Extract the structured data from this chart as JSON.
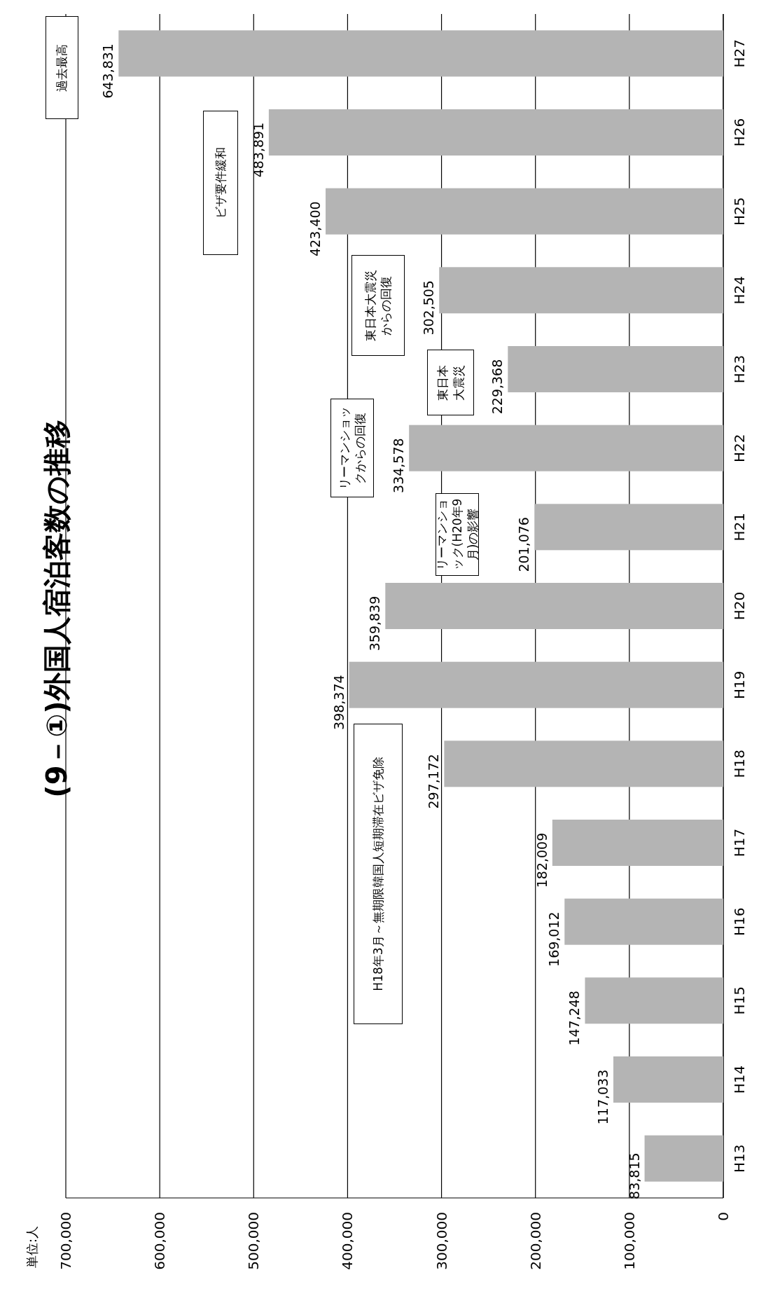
{
  "chart_data": {
    "type": "bar",
    "orientation": "horizontal",
    "title": "(9－①)外国人宿泊客数の推移",
    "categories": [
      "H27",
      "H26",
      "H25",
      "H24",
      "H23",
      "H22",
      "H21",
      "H20",
      "H19",
      "H18",
      "H17",
      "H16",
      "H15",
      "H14",
      "H13"
    ],
    "values": [
      643831,
      483891,
      423400,
      302505,
      229368,
      334578,
      201076,
      359839,
      398374,
      297172,
      182009,
      169012,
      147248,
      117033,
      83815
    ],
    "color": "#b4b4b4",
    "xlim": [
      700000,
      0
    ],
    "xticks": [
      {
        "value": 0,
        "label": "0"
      },
      {
        "value": 100000,
        "label": "100,000"
      },
      {
        "value": 200000,
        "label": "200,000"
      },
      {
        "value": 300000,
        "label": "300,000"
      },
      {
        "value": 400000,
        "label": "400,000"
      },
      {
        "value": 500000,
        "label": "500,000"
      },
      {
        "value": 600000,
        "label": "600,000"
      },
      {
        "value": 700000,
        "label": "700,000"
      }
    ],
    "grid": "x",
    "value_labels": [
      "643,831",
      "483,891",
      "423,400",
      "302,505",
      "229,368",
      "334,578",
      "201,076",
      "359,839",
      "398,374",
      "297,172",
      "182,009",
      "169,012",
      "147,248",
      "117,033",
      "83,815"
    ],
    "annotations": [
      "H18年3月～無期限韓国人短期滞在ビザ免除",
      "リーマンショックからの回復",
      "リーマンショック(H20年9月)の影響",
      "東日本大震災",
      "東日本大震災からの回復",
      "ビザ要件緩和",
      "過去最高",
      "単位:人"
    ]
  }
}
